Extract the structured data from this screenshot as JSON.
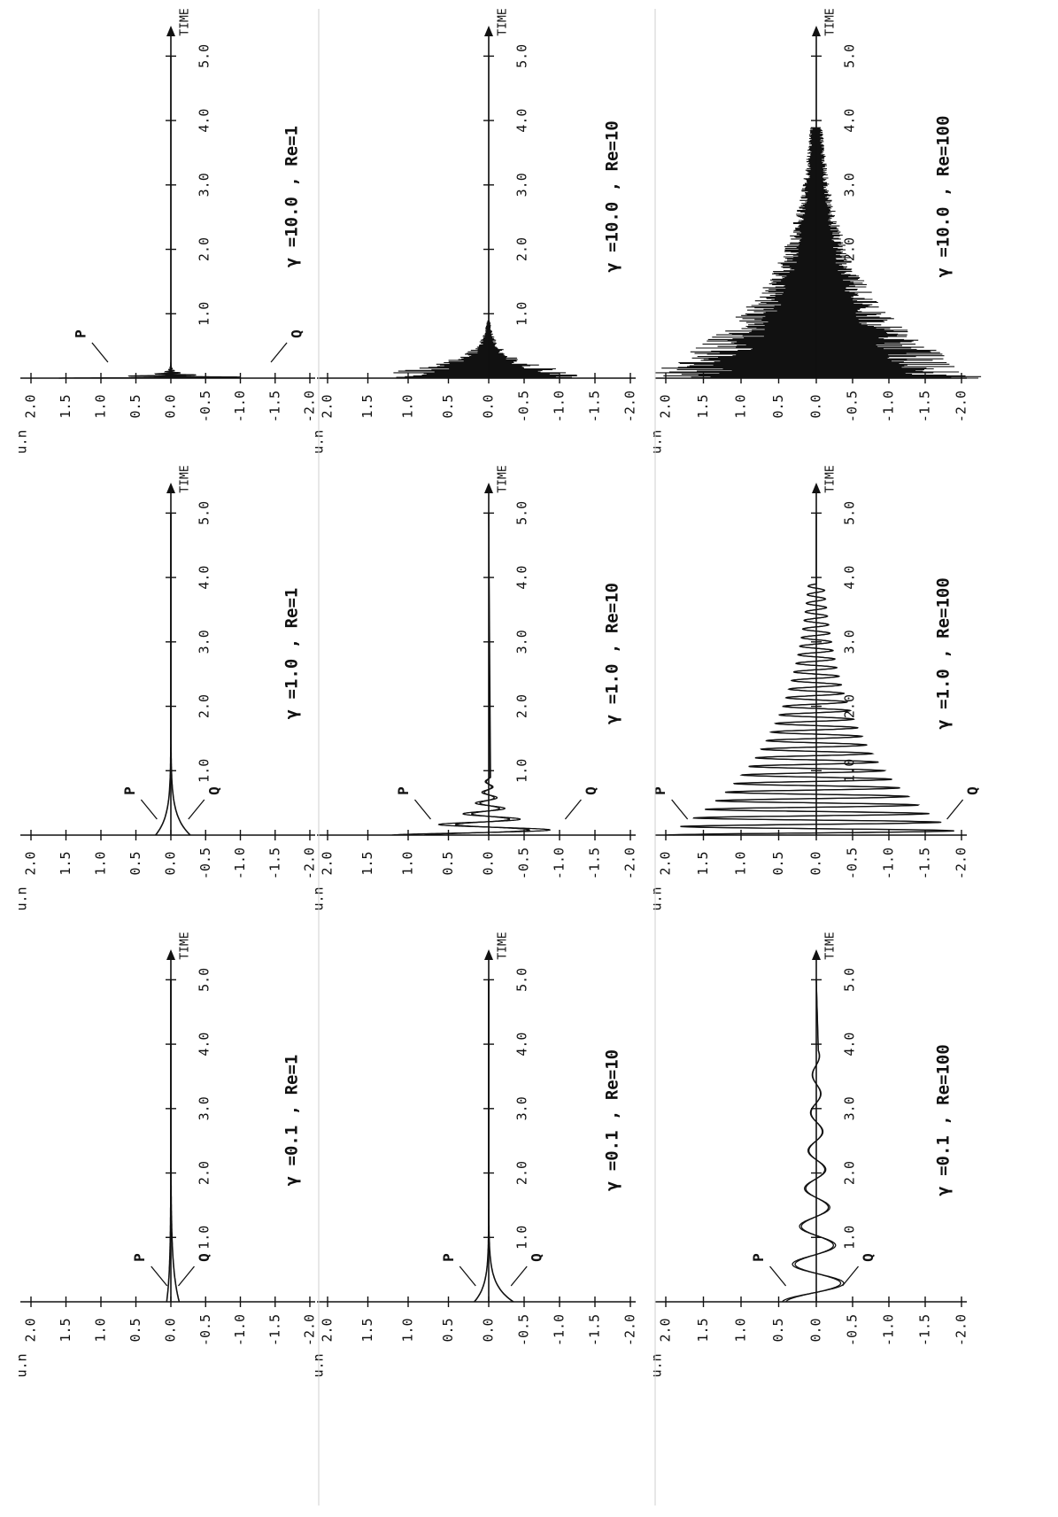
{
  "figure": {
    "x_axis_label": "TIME",
    "y_axis_label": "u.n",
    "x_tick_labels": [
      "1.0",
      "2.0",
      "3.0",
      "4.0",
      "5.0"
    ],
    "y_tick_labels": [
      "2.0",
      "1.5",
      "1.0",
      "0.5",
      "0.0",
      "-0.5",
      "-1.0",
      "-1.5",
      "-2.0"
    ],
    "ink_color": "#111111",
    "background": "#ffffff"
  },
  "chart_data": [
    {
      "type": "line",
      "title": "γ =0.1 , Re=1",
      "xlabel": "TIME",
      "ylabel": "u.n",
      "xlim": [
        0,
        5.5
      ],
      "ylim": [
        -2,
        2
      ],
      "mode": "decay",
      "amp_p": 0.06,
      "amp_q": -0.12,
      "decay_rate": 2.0,
      "osc_freq": 0,
      "annotations": [
        "P",
        "Q"
      ],
      "series": [
        {
          "name": "P",
          "x": [
            0,
            0.05,
            0.2,
            0.5,
            1.0,
            2.0,
            3.0,
            5.0
          ],
          "values": [
            0.06,
            0.05,
            0.04,
            0.02,
            0.01,
            0.0,
            0.0,
            0.0
          ]
        },
        {
          "name": "Q",
          "x": [
            0,
            0.05,
            0.2,
            0.5,
            1.0,
            2.0,
            3.0,
            5.0
          ],
          "values": [
            -0.12,
            -0.1,
            -0.08,
            -0.05,
            -0.02,
            -0.01,
            0.0,
            0.0
          ]
        }
      ]
    },
    {
      "type": "line",
      "title": "γ =0.1 , Re=10",
      "xlabel": "TIME",
      "ylabel": "u.n",
      "xlim": [
        0,
        5.5
      ],
      "ylim": [
        -2,
        2
      ],
      "mode": "decay",
      "amp_p": 0.18,
      "amp_q": -0.35,
      "decay_rate": 4.0,
      "osc_freq": 0,
      "annotations": [
        "P",
        "Q"
      ],
      "series": [
        {
          "name": "P",
          "x": [
            0,
            0.05,
            0.1,
            0.2,
            0.4,
            0.8,
            1.5,
            5.0
          ],
          "values": [
            0.18,
            0.15,
            0.12,
            0.08,
            0.04,
            0.01,
            0.0,
            0.0
          ]
        },
        {
          "name": "Q",
          "x": [
            0,
            0.05,
            0.1,
            0.2,
            0.4,
            0.8,
            1.5,
            5.0
          ],
          "values": [
            -0.35,
            -0.28,
            -0.2,
            -0.12,
            -0.05,
            -0.01,
            0.0,
            0.0
          ]
        }
      ]
    },
    {
      "type": "line",
      "title": "γ =0.1 , Re=100",
      "xlabel": "TIME",
      "ylabel": "u.n",
      "xlim": [
        0,
        5.5
      ],
      "ylim": [
        -2,
        2
      ],
      "mode": "wave",
      "amp_p": 0.45,
      "amp_q": -0.4,
      "decay_rate": 0.6,
      "osc_freq": 1.7,
      "t_end": 3.9,
      "annotations": [
        "P",
        "Q"
      ],
      "series": [
        {
          "name": "P",
          "x": [
            0,
            0.2,
            0.5,
            0.9,
            1.3,
            1.7,
            2.1,
            2.5,
            3.0,
            3.5,
            3.9
          ],
          "values": [
            0.0,
            0.45,
            -0.1,
            0.25,
            -0.05,
            0.12,
            -0.08,
            0.09,
            -0.06,
            0.06,
            0.0
          ]
        },
        {
          "name": "Q",
          "x": [
            0,
            0.1,
            0.3,
            0.5,
            0.9,
            1.3,
            1.7,
            2.1,
            2.5,
            3.0,
            3.5,
            3.9
          ],
          "values": [
            0.0,
            -0.4,
            -0.2,
            0.3,
            -0.2,
            0.15,
            -0.12,
            0.1,
            -0.08,
            0.07,
            -0.05,
            0.0
          ]
        }
      ]
    },
    {
      "type": "line",
      "title": "γ =1.0 , Re=1",
      "xlabel": "TIME",
      "ylabel": "u.n",
      "xlim": [
        0,
        5.5
      ],
      "ylim": [
        -2,
        2
      ],
      "mode": "decay",
      "amp_p": 0.22,
      "amp_q": -0.28,
      "decay_rate": 3.5,
      "osc_freq": 0,
      "annotations": [
        "P",
        "Q"
      ],
      "series": [
        {
          "name": "P",
          "x": [
            0,
            0.1,
            0.2,
            0.4,
            0.6,
            1.0,
            2.0,
            5.0
          ],
          "values": [
            0.22,
            0.16,
            0.11,
            0.05,
            0.03,
            0.01,
            0.0,
            0.0
          ]
        },
        {
          "name": "Q",
          "x": [
            0,
            0.1,
            0.2,
            0.4,
            0.6,
            1.0,
            2.0,
            5.0
          ],
          "values": [
            -0.28,
            -0.2,
            -0.13,
            -0.06,
            -0.03,
            -0.01,
            0.0,
            0.0
          ]
        }
      ]
    },
    {
      "type": "line",
      "title": "γ =1.0 , Re=10",
      "xlabel": "TIME",
      "ylabel": "u.n",
      "xlim": [
        0,
        5.5
      ],
      "ylim": [
        -2,
        2
      ],
      "mode": "burst",
      "amp_p": 0.8,
      "amp_q": -1.2,
      "decay_rate": 4.0,
      "osc_freq": 6.0,
      "t_end": 0.9,
      "annotations": [
        "P",
        "Q"
      ],
      "series": [
        {
          "name": "P",
          "x": [
            0,
            0.05,
            0.15,
            0.3,
            0.45,
            0.6,
            0.8
          ],
          "values": [
            0.8,
            0.6,
            0.3,
            -0.15,
            0.1,
            -0.05,
            0.0
          ]
        },
        {
          "name": "Q",
          "x": [
            0,
            0.05,
            0.15,
            0.3,
            0.45,
            0.6,
            0.8
          ],
          "values": [
            -1.2,
            -0.8,
            -0.35,
            0.15,
            -0.1,
            0.05,
            0.0
          ]
        }
      ]
    },
    {
      "type": "line",
      "title": "γ =1.0 , Re=100",
      "xlabel": "TIME",
      "ylabel": "u.n",
      "xlim": [
        0,
        5.5
      ],
      "ylim": [
        -2,
        2
      ],
      "mode": "wave",
      "amp_p": 1.9,
      "amp_q": -2.0,
      "decay_rate": 0.75,
      "osc_freq": 7.5,
      "t_end": 3.9,
      "annotations": [
        "P",
        "Q"
      ],
      "series": [
        {
          "name": "P",
          "x": [
            0,
            0.1,
            0.5,
            1.0,
            1.5,
            2.0,
            2.5,
            3.0,
            3.5,
            3.9
          ],
          "values": [
            1.9,
            1.2,
            0.5,
            0.35,
            0.26,
            0.18,
            0.12,
            0.09,
            0.06,
            0.04
          ]
        },
        {
          "name": "Q",
          "x": [
            0,
            0.1,
            0.5,
            1.0,
            1.5,
            2.0,
            2.5,
            3.0,
            3.5,
            3.9
          ],
          "values": [
            -2.0,
            -1.3,
            -0.5,
            -0.35,
            -0.26,
            -0.18,
            -0.12,
            -0.09,
            -0.06,
            -0.04
          ]
        }
      ]
    },
    {
      "type": "line",
      "title": "γ =10.0 , Re=1",
      "xlabel": "TIME",
      "ylabel": "u.n",
      "xlim": [
        0,
        5.5
      ],
      "ylim": [
        -2,
        2
      ],
      "mode": "burst",
      "amp_p": 1.0,
      "amp_q": -1.6,
      "decay_rate": 30.0,
      "osc_freq": 30.0,
      "t_end": 0.25,
      "annotations": [
        "P",
        "Q"
      ],
      "series": [
        {
          "name": "P",
          "x": [
            0,
            0.02,
            0.05,
            0.1,
            0.2
          ],
          "values": [
            1.0,
            0.6,
            0.2,
            0.05,
            0.0
          ]
        },
        {
          "name": "Q",
          "x": [
            0,
            0.02,
            0.05,
            0.1,
            0.2
          ],
          "values": [
            -1.6,
            -0.9,
            -0.3,
            -0.05,
            0.0
          ]
        }
      ]
    },
    {
      "type": "line",
      "title": "γ =10.0 , Re=10",
      "xlabel": "TIME",
      "ylabel": "u.n",
      "xlim": [
        0,
        5.5
      ],
      "ylim": [
        -2,
        2
      ],
      "mode": "spikes",
      "amp_p": 2.0,
      "amp_q": -2.0,
      "decay_rate": 5.0,
      "osc_freq": 0,
      "t_end": 0.9,
      "annotations": [],
      "series": [
        {
          "name": "",
          "x": [
            0,
            0.1,
            0.2,
            0.3,
            0.4,
            0.5,
            0.6,
            0.7,
            0.8,
            0.9
          ],
          "values": [
            2.0,
            1.2,
            0.75,
            0.45,
            0.28,
            0.17,
            0.1,
            0.06,
            0.04,
            0.02
          ]
        }
      ]
    },
    {
      "type": "line",
      "title": "γ =10.0 , Re=100",
      "xlabel": "TIME",
      "ylabel": "u.n",
      "xlim": [
        0,
        5.5
      ],
      "ylim": [
        -2,
        2
      ],
      "mode": "spikes",
      "amp_p": 2.4,
      "amp_q": -2.4,
      "decay_rate": 0.85,
      "osc_freq": 0,
      "t_end": 3.9,
      "annotations": [],
      "series": [
        {
          "name": "",
          "x": [
            0,
            0.5,
            1.0,
            1.5,
            2.0,
            2.5,
            3.0,
            3.5,
            3.9
          ],
          "values": [
            2.4,
            1.5,
            0.9,
            0.55,
            0.33,
            0.2,
            0.12,
            0.07,
            0.04
          ]
        }
      ]
    }
  ]
}
